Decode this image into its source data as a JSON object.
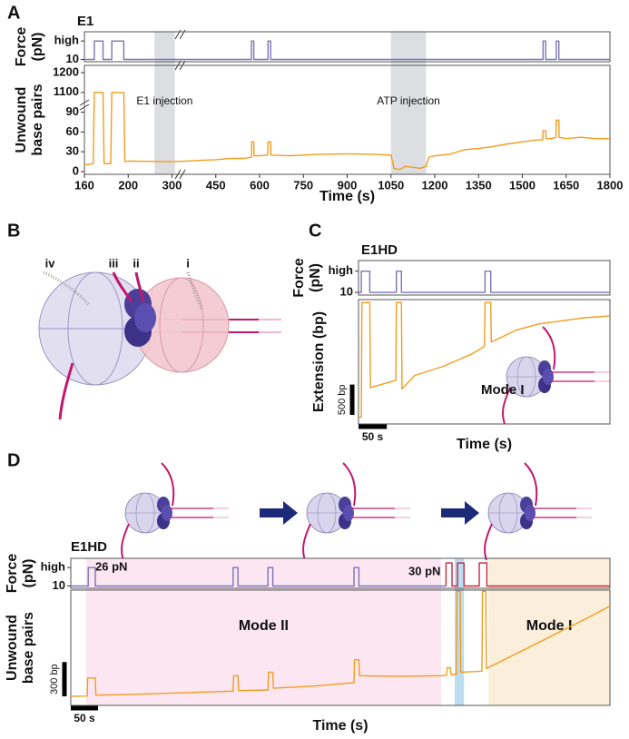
{
  "panels": {
    "letters": [
      "A",
      "B",
      "C",
      "D"
    ]
  },
  "diagram": {
    "labels": [
      "iv",
      "iii",
      "ii",
      "i"
    ]
  },
  "chart_data": [
    {
      "type": "line",
      "title": "E1",
      "ylabel": [
        "Force",
        "(pN)"
      ],
      "ylim": [
        8,
        34
      ],
      "yticks": [
        {
          "value": 26,
          "label": "high"
        },
        10
      ],
      "x": [
        160,
        169,
        169,
        177,
        177,
        185,
        185,
        196,
        196,
        572,
        572,
        580,
        580,
        629,
        629,
        638,
        638,
        1571,
        1571,
        1580,
        1580,
        1616,
        1616,
        1625,
        1625,
        1800
      ],
      "series": [
        {
          "color": "#7a74b6",
          "values": [
            10,
            10,
            26,
            26,
            10,
            10,
            26,
            26,
            10,
            10,
            26,
            26,
            10,
            10,
            26,
            26,
            10,
            10,
            26,
            26,
            10,
            10,
            26,
            26,
            10,
            10
          ]
        }
      ]
    },
    {
      "type": "line",
      "ylabel": [
        "Unwound",
        "base pairs"
      ],
      "xlabel": "Time (s)",
      "axis_break": true,
      "xlim": [
        160,
        1800
      ],
      "xticks": [
        160,
        200,
        300,
        450,
        600,
        750,
        900,
        1050,
        1200,
        1350,
        1500,
        1650,
        1800
      ],
      "ylim": [
        -3,
        1250
      ],
      "yticks": [
        0,
        30,
        60,
        90,
        1100,
        1200
      ],
      "shaded": [
        {
          "x0": 260,
          "x1": 310,
          "color": "#dcdee2",
          "label": "E1 injection",
          "label_color": "#222222"
        },
        {
          "x0": 1050,
          "x1": 1170,
          "color": "#dcdee2",
          "label": "ATP injection",
          "label_color": "#222222"
        }
      ],
      "x": [
        160,
        168,
        169,
        177,
        178,
        184,
        185,
        196,
        197,
        200,
        300,
        350,
        400,
        450,
        500,
        550,
        572,
        573,
        580,
        581,
        600,
        628,
        629,
        638,
        639,
        700,
        800,
        900,
        1000,
        1050,
        1060,
        1080,
        1100,
        1150,
        1170,
        1180,
        1200,
        1250,
        1300,
        1350,
        1400,
        1450,
        1500,
        1550,
        1570,
        1571,
        1580,
        1581,
        1600,
        1615,
        1616,
        1625,
        1626,
        1650,
        1700,
        1750,
        1800
      ],
      "series": [
        {
          "color": "#f29c1f",
          "values": [
            10,
            12,
            1100,
            1100,
            12,
            12,
            1100,
            1100,
            15,
            16,
            15,
            16,
            17,
            18,
            20,
            20,
            22,
            45,
            45,
            24,
            24,
            25,
            45,
            45,
            25,
            24,
            26,
            27,
            26,
            25,
            5,
            3,
            8,
            5,
            8,
            22,
            24,
            26,
            33,
            35,
            38,
            42,
            45,
            48,
            48,
            62,
            62,
            50,
            50,
            52,
            78,
            78,
            52,
            50,
            52,
            50,
            50
          ]
        }
      ]
    },
    {
      "type": "line",
      "title": "E1HD",
      "ylabel": [
        "Force",
        "(pN)"
      ],
      "ylim": [
        8,
        34
      ],
      "yticks": [
        {
          "value": 26,
          "label": "high"
        },
        10
      ],
      "x": [
        0,
        5,
        5,
        20,
        20,
        67,
        67,
        76,
        76,
        224,
        224,
        234,
        234,
        445
      ],
      "series": [
        {
          "color": "#7a74b6",
          "values": [
            10,
            10,
            26,
            26,
            10,
            10,
            26,
            26,
            10,
            10,
            26,
            26,
            10,
            10
          ]
        }
      ]
    },
    {
      "type": "line",
      "ylabel": [
        "Extension (bp)"
      ],
      "xlabel": "Time (s)",
      "xlim": [
        0,
        445
      ],
      "ylim": [
        0,
        2050
      ],
      "scalebars": {
        "y": {
          "value": 500,
          "label": "500 bp"
        },
        "x": {
          "value": 50,
          "label": "50 s"
        }
      },
      "annotations": [
        {
          "text": "Mode I",
          "color": "#d6303b"
        }
      ],
      "x": [
        0,
        5,
        6,
        20,
        21,
        40,
        66,
        67,
        76,
        77,
        100,
        150,
        200,
        223,
        224,
        234,
        235,
        280,
        320,
        360,
        400,
        445
      ],
      "series": [
        {
          "color": "#f29c1f",
          "values": [
            110,
            110,
            2000,
            2000,
            600,
            650,
            720,
            2000,
            2000,
            580,
            800,
            950,
            1150,
            1280,
            2000,
            2000,
            1350,
            1550,
            1650,
            1700,
            1750,
            1780
          ]
        }
      ]
    },
    {
      "type": "line",
      "title": "E1HD",
      "ylabel": [
        "Force",
        "(pN)"
      ],
      "ylim": [
        8,
        34
      ],
      "yticks": [
        {
          "value": 26,
          "label": "high"
        },
        10
      ],
      "annotations": [
        {
          "text": "26 pN",
          "color": "#222222"
        },
        {
          "text": "30 pN",
          "color": "#c0283a"
        }
      ],
      "x": [
        0,
        32,
        32,
        45,
        45,
        298,
        298,
        307,
        307,
        362,
        362,
        371,
        371,
        520,
        520,
        529,
        529,
        689,
        689,
        700,
        700,
        710,
        710,
        722,
        722,
        750,
        750,
        764,
        764,
        990
      ],
      "series": [
        {
          "color": "#7a74b6",
          "values": [
            10,
            10,
            26,
            26,
            10,
            10,
            26,
            26,
            10,
            10,
            26,
            26,
            10,
            10,
            26,
            26,
            10,
            10,
            null,
            null,
            null,
            null,
            null,
            null,
            null,
            null,
            null,
            null,
            null,
            null
          ]
        },
        {
          "color": "#c0283a",
          "values": [
            null,
            null,
            null,
            null,
            null,
            null,
            null,
            null,
            null,
            null,
            null,
            null,
            null,
            null,
            null,
            null,
            null,
            10,
            30,
            30,
            10,
            10,
            30,
            30,
            10,
            10,
            30,
            30,
            10,
            10
          ]
        }
      ]
    },
    {
      "type": "line",
      "ylabel": [
        "Unwound",
        "base pairs"
      ],
      "xlabel": "Time (s)",
      "xlim": [
        0,
        990
      ],
      "ylim": [
        0,
        1010
      ],
      "scalebars": {
        "y": {
          "value": 300,
          "label": "300 bp"
        },
        "x": {
          "value": 50,
          "label": "50 s"
        }
      },
      "shaded": [
        {
          "x0": 28,
          "x1": 680,
          "color": "#fbe6f1",
          "label": "Mode II",
          "label_color": "#d6303b"
        },
        {
          "x0": 705,
          "x1": 722,
          "color": "#bcdcf2"
        },
        {
          "x0": 767,
          "x1": 990,
          "color": "#fbefdc",
          "label": "Mode I",
          "label_color": "#d6303b"
        }
      ],
      "x": [
        0,
        30,
        31,
        45,
        46,
        100,
        200,
        298,
        299,
        307,
        308,
        362,
        363,
        371,
        372,
        450,
        520,
        521,
        529,
        530,
        600,
        680,
        690,
        691,
        697,
        698,
        708,
        709,
        715,
        716,
        755,
        756,
        762,
        763,
        800,
        850,
        900,
        950,
        990
      ],
      "series": [
        {
          "color": "#f29c1f",
          "values": [
            80,
            82,
            240,
            240,
            90,
            95,
            110,
            125,
            260,
            260,
            130,
            135,
            290,
            290,
            150,
            170,
            200,
            400,
            400,
            260,
            255,
            260,
            265,
            330,
            330,
            270,
            270,
            1000,
            1000,
            290,
            300,
            1000,
            1000,
            323,
            410,
            530,
            650,
            770,
            870
          ]
        }
      ]
    }
  ]
}
